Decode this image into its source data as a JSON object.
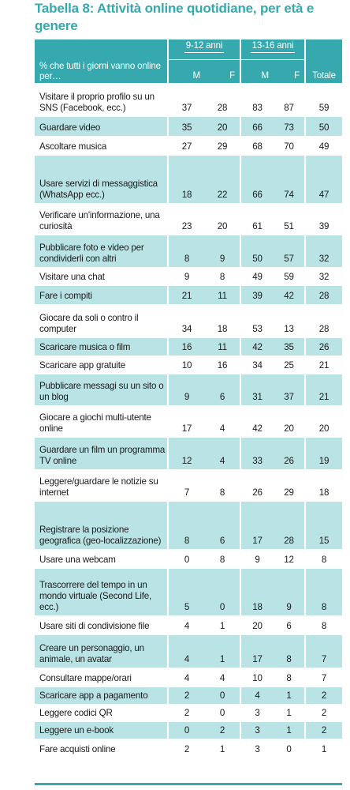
{
  "title": "Tabella 8: Attività online quotidiane, per età e genere",
  "header": {
    "label": "% che tutti i giorni vanno online per…",
    "group1": "9-12 anni",
    "group2": "13-16 anni",
    "sub": [
      "M",
      "F",
      "M",
      "F"
    ],
    "total": "Totale"
  },
  "colors": {
    "accent": "#35a9ae",
    "band": "#b9e3e4"
  },
  "rows": [
    {
      "label": "Visitare il proprio profilo su un SNS (Facebook, ecc.)",
      "v": [
        "37",
        "28",
        "83",
        "87",
        "59"
      ]
    },
    {
      "label": "Guardare video",
      "v": [
        "35",
        "20",
        "66",
        "73",
        "50"
      ]
    },
    {
      "label": "Ascoltare musica",
      "v": [
        "27",
        "29",
        "68",
        "70",
        "49"
      ]
    },
    {
      "label": "Usare servizi di messaggistica (WhatsApp ecc.)",
      "v": [
        "18",
        "22",
        "66",
        "74",
        "47"
      ]
    },
    {
      "label": "Verificare un'informazione, una curiosità",
      "v": [
        "23",
        "20",
        "61",
        "51",
        "39"
      ]
    },
    {
      "label": "Pubblicare foto e video per condividerli con altri",
      "v": [
        "8",
        "9",
        "50",
        "57",
        "32"
      ]
    },
    {
      "label": "Visitare una chat",
      "v": [
        "9",
        "8",
        "49",
        "59",
        "32"
      ]
    },
    {
      "label": "Fare i compiti",
      "v": [
        "21",
        "11",
        "39",
        "42",
        "28"
      ]
    },
    {
      "label": "Giocare da soli o contro il computer",
      "v": [
        "34",
        "18",
        "53",
        "13",
        "28"
      ]
    },
    {
      "label": "Scaricare musica o film",
      "v": [
        "16",
        "11",
        "42",
        "35",
        "26"
      ]
    },
    {
      "label": "Scaricare app gratuite",
      "v": [
        "10",
        "16",
        "34",
        "25",
        "21"
      ]
    },
    {
      "label": "Pubblicare messagi su un sito o un blog",
      "v": [
        "9",
        "6",
        "31",
        "37",
        "21"
      ]
    },
    {
      "label": "Giocare a giochi multi-utente online",
      "v": [
        "17",
        "4",
        "42",
        "20",
        "20"
      ]
    },
    {
      "label": "Guardare un film un programma TV online",
      "v": [
        "12",
        "4",
        "33",
        "26",
        "19"
      ]
    },
    {
      "label": "Leggere/guardare le notizie su internet",
      "v": [
        "7",
        "8",
        "26",
        "29",
        "18"
      ]
    },
    {
      "label": "Registrare la posizione geografica (geo-localizzazione)",
      "v": [
        "8",
        "6",
        "17",
        "28",
        "15"
      ]
    },
    {
      "label": "Usare una webcam",
      "v": [
        "0",
        "8",
        "9",
        "12",
        "8"
      ]
    },
    {
      "label": "Trascorrere del tempo in un mondo virtuale (Second Life, ecc.)",
      "v": [
        "5",
        "0",
        "18",
        "9",
        "8"
      ]
    },
    {
      "label": "Usare siti di condivisione file",
      "v": [
        "4",
        "1",
        "20",
        "6",
        "8"
      ]
    },
    {
      "label": "Creare un personaggio, un animale, un avatar",
      "v": [
        "4",
        "1",
        "17",
        "8",
        "7"
      ]
    },
    {
      "label": "Consultare mappe/orari",
      "v": [
        "4",
        "4",
        "10",
        "8",
        "7"
      ]
    },
    {
      "label": "Scaricare app a pagamento",
      "v": [
        "2",
        "0",
        "4",
        "1",
        "2"
      ]
    },
    {
      "label": "Leggere codici QR",
      "v": [
        "2",
        "0",
        "3",
        "1",
        "2"
      ]
    },
    {
      "label": "Leggere un e-book",
      "v": [
        "0",
        "2",
        "3",
        "1",
        "2"
      ]
    },
    {
      "label": "Fare acquisti online",
      "v": [
        "2",
        "1",
        "3",
        "0",
        "1"
      ]
    }
  ]
}
